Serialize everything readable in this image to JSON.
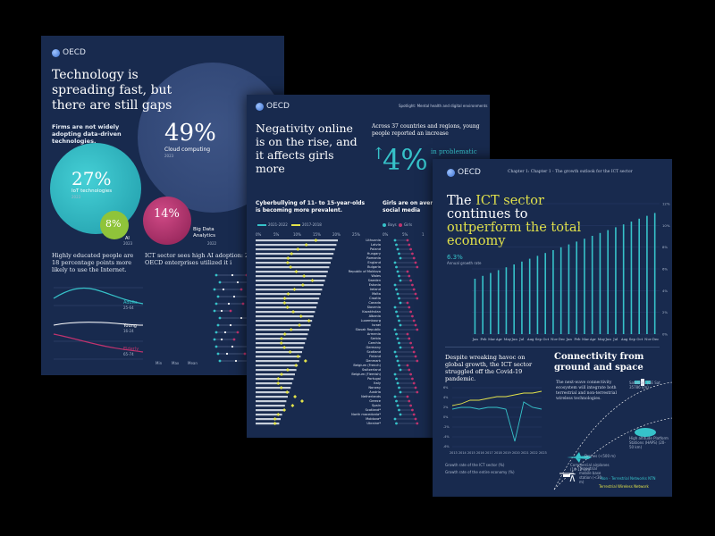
{
  "brand": {
    "name": "OECD"
  },
  "colors": {
    "navy": "#182a4e",
    "teal": "#36c2c9",
    "yellow": "#e3e34a",
    "magenta": "#c0336e",
    "green": "#8fc43a"
  },
  "page1": {
    "title": "Technology is spreading fast, but there are still gaps",
    "subtitle": "Firms are not widely adopting data-driven technologies.",
    "bubbles": [
      {
        "value": "49%",
        "label": "Cloud computing",
        "year": "2023"
      },
      {
        "value": "27%",
        "label": "IoT technologies",
        "year": "2023"
      },
      {
        "value": "8%",
        "label": "AI",
        "year": "2023"
      },
      {
        "value": "14%",
        "label": "Big Data Analytics",
        "year": "2022"
      }
    ],
    "edu_text": "Highly educated people are 18 percentage points more likely to use the Internet.",
    "ict_text": "ICT sector sees high AI adoption: 25% of OECD enterprises utilized it i",
    "line_labels": [
      {
        "name": "Adults",
        "sub": "25-64"
      },
      {
        "name": "Young",
        "sub": "16-24"
      },
      {
        "name": "Elderly",
        "sub": "65-74"
      }
    ],
    "legend": [
      "Min",
      "Max",
      "Mean"
    ]
  },
  "page2": {
    "spotlight": "Spotlight: Mental health and digital environments",
    "title": "Negativity online is on the rise, and it affects girls more",
    "stat_intro": "Across 37 countries and regions, young people reported an increase",
    "stat_value": "4%",
    "stat_tail": "in problematic",
    "cyber_text": "Cyberbullying of 11- to 15-year-olds is becoming more prevalent.",
    "girls_text": "Girls are on average m blematic social media",
    "legend_years": [
      "2021-2022",
      "2017-2018"
    ],
    "legend_sex": [
      "Boys",
      "Girls"
    ],
    "axis_ticks": [
      "0%",
      "5%",
      "10%",
      "15%",
      "20%",
      "25%"
    ],
    "axis_ticks_right": [
      "0%",
      "5%",
      "1"
    ],
    "countries": [
      "Lithuania",
      "Latvia",
      "Poland",
      "Hungary",
      "Romania",
      "England",
      "Bulgaria",
      "Republic of Moldova",
      "Wales",
      "Sweden",
      "Estonia",
      "Ireland",
      "Malta",
      "Croatia",
      "Canada",
      "Slovenia",
      "Kazakhstan",
      "Albania",
      "Luxembourg",
      "Israel",
      "Slovak Republic",
      "Armenia",
      "Serbia",
      "Czechia",
      "Germany",
      "Scotland",
      "Finland",
      "Denmark",
      "Belgium (French)",
      "Switzerland",
      "Belgium (Flemish)",
      "Portugal",
      "Italy",
      "Norway",
      "Austria",
      "Netherlands",
      "Greece",
      "Spain",
      "Scotland*",
      "North macedonia*",
      "Moldova*",
      "Ukraine*"
    ]
  },
  "page3": {
    "header": "Chapter 1: Chapter 1 - The growth outlook for the ICT sector",
    "title_w1": "The ",
    "title_hl1": "ICT sector",
    "title_w2": "continues to",
    "title_hl2": "outperform the total",
    "title_w3": "economy",
    "growth_value": "6.3%",
    "growth_note": "Annual growth rate",
    "y_ticks": [
      "12%",
      "10%",
      "8%",
      "6%",
      "4%",
      "2%",
      "0%"
    ],
    "months": [
      "Jan",
      "Feb",
      "Mar",
      "Apr",
      "May",
      "Jun",
      "Jul",
      "Aug",
      "Sep",
      "Oct",
      "Nov",
      "Dec",
      "Jan",
      "Feb",
      "Mar",
      "Apr",
      "May",
      "Jun",
      "Jul",
      "Aug",
      "Sep",
      "Oct",
      "Nov",
      "Dec"
    ],
    "bottom_left_text": "Despite wreaking havoc on global growth, the ICT sector struggled off the Covid-19 pandemic.",
    "bl_legend": [
      "Growth rate of the ICT sector (%)",
      "Growth rate of the entire economy (%)"
    ],
    "bl_years": [
      "2013",
      "2014",
      "2015",
      "2016",
      "2017",
      "2018",
      "2019",
      "2020",
      "2021",
      "2022",
      "2023"
    ],
    "bl_y_ticks": [
      "6%",
      "4%",
      "2%",
      "0%",
      "-2%",
      "-4%",
      "-6%"
    ],
    "conn_title": "Connectivity from ground and space",
    "conn_text": "The next-wave connectivity ecosystem will integrate both terrestrial and non-terrestrial wireless technologies.",
    "orbit_labels": [
      "Satellites (GE Sat 35786 km)",
      "Commercial airplanes (10-12 km)",
      "Drones (<500 m)",
      "High altitude Platform Stations (HAPS) (20-50 km)",
      "Terrestrial mobile base station (<30 m)"
    ],
    "ntn_label": "Non - Terrestrial Networks NTN",
    "tn_label": "Terrestrial Wireless Network"
  }
}
